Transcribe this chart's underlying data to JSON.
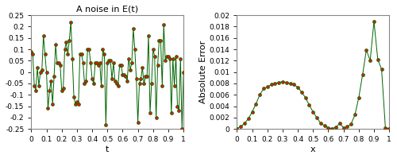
{
  "noise_t": [
    0.0,
    0.01,
    0.02,
    0.03,
    0.04,
    0.05,
    0.06,
    0.07,
    0.08,
    0.09,
    0.1,
    0.11,
    0.12,
    0.13,
    0.14,
    0.15,
    0.16,
    0.17,
    0.18,
    0.19,
    0.2,
    0.21,
    0.22,
    0.23,
    0.24,
    0.25,
    0.26,
    0.27,
    0.28,
    0.29,
    0.3,
    0.31,
    0.32,
    0.33,
    0.34,
    0.35,
    0.36,
    0.37,
    0.38,
    0.39,
    0.4,
    0.41,
    0.42,
    0.43,
    0.44,
    0.45,
    0.46,
    0.47,
    0.48,
    0.49,
    0.5,
    0.51,
    0.52,
    0.53,
    0.54,
    0.55,
    0.56,
    0.57,
    0.58,
    0.59,
    0.6,
    0.61,
    0.62,
    0.63,
    0.64,
    0.65,
    0.66,
    0.67,
    0.68,
    0.69,
    0.7,
    0.71,
    0.72,
    0.73,
    0.74,
    0.75,
    0.76,
    0.77,
    0.78,
    0.79,
    0.8,
    0.81,
    0.82,
    0.83,
    0.84,
    0.85,
    0.86,
    0.87,
    0.88,
    0.89,
    0.9,
    0.91,
    0.92,
    0.93,
    0.94,
    0.95,
    0.96,
    0.97,
    0.98,
    0.99,
    1.0
  ],
  "noise_e": [
    0.09,
    0.08,
    -0.06,
    -0.08,
    0.02,
    -0.06,
    0.0,
    0.01,
    0.16,
    0.08,
    0.0,
    -0.16,
    -0.08,
    -0.04,
    -0.14,
    -0.02,
    0.12,
    0.04,
    0.04,
    0.03,
    -0.08,
    -0.07,
    0.1,
    0.13,
    0.08,
    0.14,
    0.22,
    0.06,
    -0.11,
    -0.14,
    -0.13,
    -0.14,
    0.08,
    0.08,
    0.04,
    -0.05,
    -0.04,
    0.1,
    0.1,
    0.04,
    -0.03,
    -0.05,
    0.04,
    0.04,
    0.03,
    0.04,
    -0.06,
    0.1,
    0.08,
    -0.23,
    0.04,
    0.05,
    0.05,
    -0.03,
    0.04,
    -0.04,
    -0.05,
    -0.06,
    0.03,
    0.03,
    -0.01,
    -0.01,
    -0.02,
    -0.04,
    0.06,
    0.01,
    0.04,
    0.19,
    0.1,
    -0.03,
    -0.22,
    -0.05,
    -0.03,
    0.02,
    -0.05,
    -0.02,
    -0.02,
    0.16,
    -0.18,
    -0.05,
    0.1,
    0.07,
    -0.2,
    0.03,
    0.14,
    0.14,
    -0.06,
    0.21,
    0.05,
    0.07,
    0.07,
    0.06,
    -0.18,
    0.06,
    -0.06,
    0.07,
    -0.15,
    -0.17,
    0.06,
    -0.25,
    0.0
  ],
  "error_x": [
    0.0,
    0.025,
    0.05,
    0.075,
    0.1,
    0.125,
    0.15,
    0.175,
    0.2,
    0.225,
    0.25,
    0.275,
    0.3,
    0.325,
    0.35,
    0.375,
    0.4,
    0.425,
    0.45,
    0.475,
    0.5,
    0.525,
    0.55,
    0.575,
    0.6,
    0.625,
    0.65,
    0.675,
    0.7,
    0.725,
    0.75,
    0.775,
    0.8,
    0.825,
    0.85,
    0.875,
    0.9,
    0.925,
    0.95,
    0.975,
    1.0
  ],
  "error_y": [
    0.0001,
    0.0004,
    0.001,
    0.0018,
    0.003,
    0.0044,
    0.006,
    0.0071,
    0.0074,
    0.0078,
    0.008,
    0.0082,
    0.0083,
    0.0082,
    0.008,
    0.0078,
    0.0073,
    0.0065,
    0.0055,
    0.0042,
    0.003,
    0.002,
    0.001,
    0.0006,
    0.0002,
    0.0001,
    0.0003,
    0.001,
    0.0002,
    0.0004,
    0.0009,
    0.0025,
    0.0055,
    0.0095,
    0.0139,
    0.012,
    0.0189,
    0.0122,
    0.0105,
    0.0002,
    0.0001
  ],
  "line_color": "#006400",
  "marker_facecolor": "#cc2200",
  "marker_edgecolor": "#006400",
  "marker_size": 2.8,
  "marker_edgewidth": 0.5,
  "linewidth": 0.7,
  "title_left": "A noise in E(t)",
  "xlabel_left": "t",
  "ylabel_right": "Absolute Error",
  "xlabel_right": "x",
  "xlim_left": [
    0,
    1
  ],
  "ylim_left": [
    -0.25,
    0.25
  ],
  "xlim_right": [
    0,
    1
  ],
  "ylim_right": [
    0,
    0.02
  ],
  "yticks_left": [
    -0.25,
    -0.2,
    -0.15,
    -0.1,
    -0.05,
    0.0,
    0.05,
    0.1,
    0.15,
    0.2,
    0.25
  ],
  "yticks_right": [
    0.0,
    0.002,
    0.004,
    0.006,
    0.008,
    0.01,
    0.012,
    0.014,
    0.016,
    0.018,
    0.02
  ],
  "xticks_both": [
    0.0,
    0.1,
    0.2,
    0.3,
    0.4,
    0.5,
    0.6,
    0.7,
    0.8,
    0.9,
    1.0
  ],
  "bg_color": "#ffffff",
  "fig_color": "#ffffff",
  "title_fontsize": 8,
  "label_fontsize": 8,
  "tick_fontsize": 6.5,
  "spine_color": "#888888"
}
